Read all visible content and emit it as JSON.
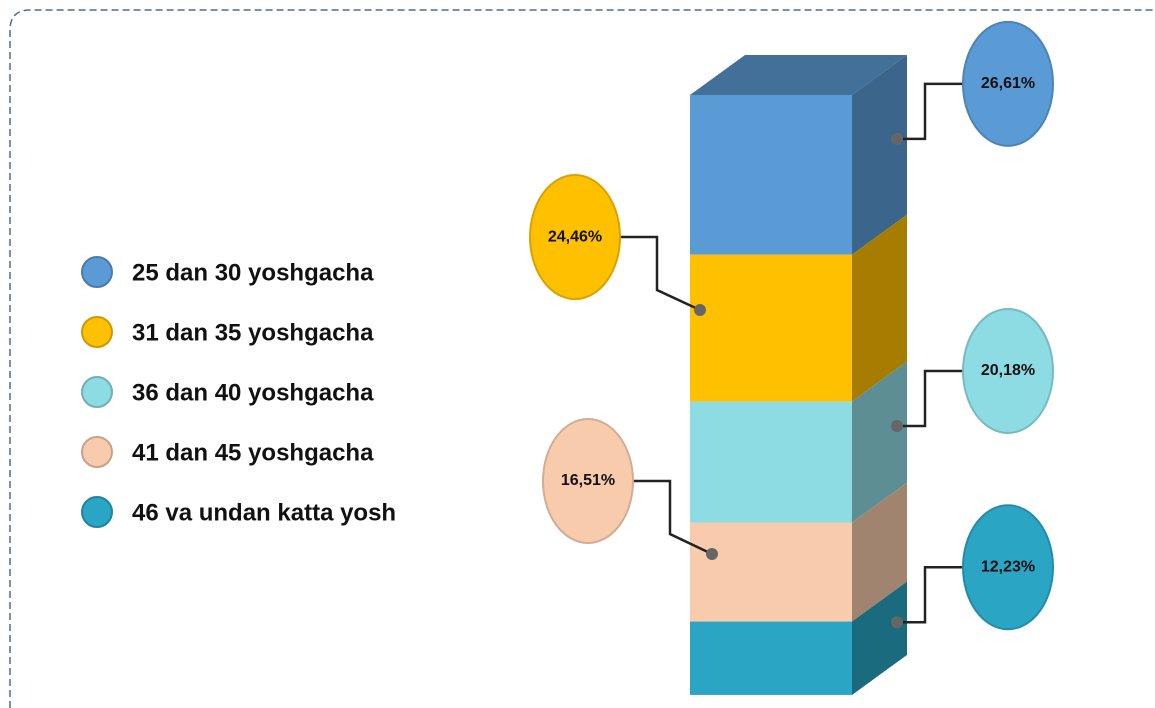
{
  "chart_data": {
    "type": "bar",
    "stacked": true,
    "ylim": [
      0,
      100
    ],
    "series": [
      {
        "name": "25 dan 30 yoshgacha",
        "color": "#5b9bd5",
        "values": [
          26.61
        ],
        "value_labels": [
          "26,61%"
        ]
      },
      {
        "name": "31 dan 35 yoshgacha",
        "color": "#ffc000",
        "values": [
          24.46
        ],
        "value_labels": [
          "24,46%"
        ]
      },
      {
        "name": "36 dan 40 yoshgacha",
        "color": "#8ddbe3",
        "values": [
          20.18
        ],
        "value_labels": [
          "20,18%"
        ]
      },
      {
        "name": "41 dan 45 yoshgacha",
        "color": "#f8cbad",
        "values": [
          16.51
        ],
        "value_labels": [
          "16,51%"
        ]
      },
      {
        "name": "46 va undan katta yosh",
        "color": "#2aa5c3",
        "values": [
          12.23
        ],
        "value_labels": [
          "12,23%"
        ]
      }
    ]
  }
}
